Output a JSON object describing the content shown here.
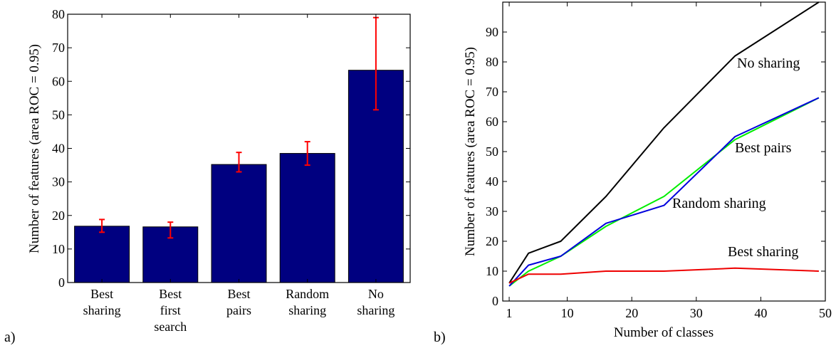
{
  "chart_data": [
    {
      "panel_label": "a)",
      "type": "bar",
      "categories": [
        [
          "Best",
          "sharing"
        ],
        [
          "Best",
          "first",
          "search"
        ],
        [
          "Best",
          "pairs"
        ],
        [
          "Random",
          "sharing"
        ],
        [
          "No",
          "sharing"
        ]
      ],
      "values": [
        16.8,
        16.6,
        35.2,
        38.5,
        63.3
      ],
      "error_low": [
        15.0,
        13.3,
        33.0,
        35.0,
        51.5
      ],
      "error_high": [
        18.8,
        18.0,
        38.8,
        42.0,
        79.0
      ],
      "ylabel": "Number of features (area ROC = 0.95)",
      "xlabel": "",
      "ylim": [
        0,
        80
      ],
      "yticks": [
        0,
        10,
        20,
        30,
        40,
        50,
        60,
        70,
        80
      ],
      "bar_color": "#000080",
      "error_color": "#ff0000",
      "grid": false
    },
    {
      "panel_label": "b)",
      "type": "line",
      "xlabel": "Number of classes",
      "ylabel": "Number of features (area ROC = 0.95)",
      "xlim": [
        0,
        50
      ],
      "ylim": [
        0,
        100
      ],
      "xticks": [
        1,
        10,
        20,
        30,
        40,
        50
      ],
      "yticks": [
        0,
        10,
        20,
        30,
        40,
        50,
        60,
        70,
        80,
        90
      ],
      "grid": false,
      "series": [
        {
          "name": "No sharing",
          "color": "#000000",
          "x": [
            1,
            4,
            9,
            16,
            25,
            36,
            49
          ],
          "y": [
            6,
            16,
            20,
            35,
            58,
            82,
            100
          ]
        },
        {
          "name": "Best pairs",
          "color": "#00ee00",
          "x": [
            1,
            4,
            9,
            16,
            25,
            36,
            49
          ],
          "y": [
            5,
            10,
            15,
            25,
            35,
            54,
            68
          ]
        },
        {
          "name": "Random sharing",
          "color": "#0000dd",
          "x": [
            1,
            4,
            9,
            16,
            25,
            36,
            49
          ],
          "y": [
            5,
            12,
            15,
            26,
            32,
            55,
            68
          ]
        },
        {
          "name": "Best sharing",
          "color": "#ee0000",
          "x": [
            1,
            4,
            9,
            16,
            25,
            36,
            49
          ],
          "y": [
            6,
            9,
            9,
            10,
            10,
            11,
            10
          ]
        }
      ]
    }
  ]
}
